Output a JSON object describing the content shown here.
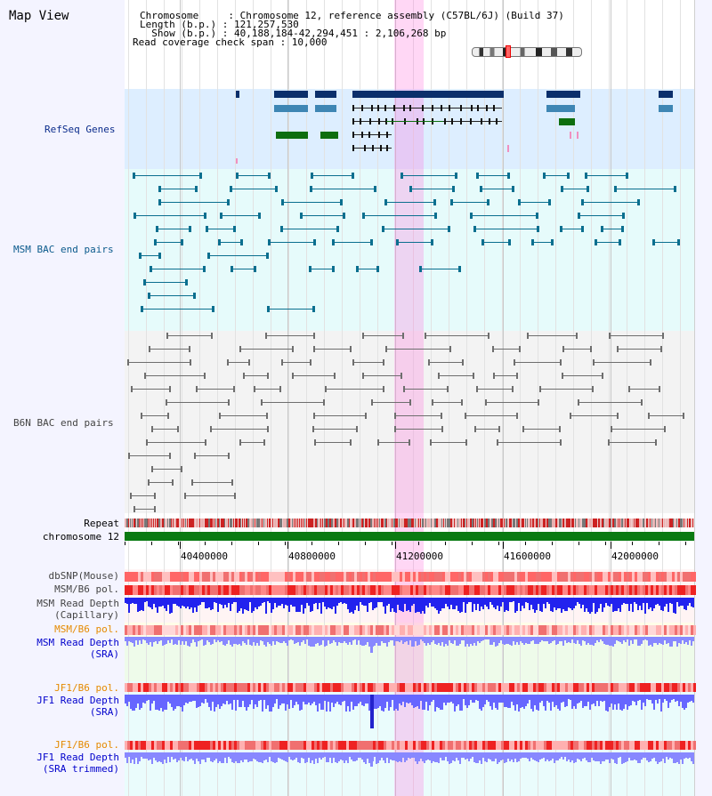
{
  "app": {
    "title": "Map View"
  },
  "header": {
    "chromosome_row": "Chromosome     : Chromosome 12, reference assembly (C57BL/6J) (Build 37)",
    "length_row": "Length (b.p.) : 121,257,530",
    "show_row": "  Show (b.p.) : 40,188,184-42,294,451 : 2,106,268 bp",
    "coverage_row": "Read coverage check span : 10,000"
  },
  "tracks": {
    "refseq": "RefSeq Genes",
    "msm_bac": "MSM BAC end pairs",
    "b6n_bac": "B6N BAC end pairs",
    "repeat": "Repeat",
    "chromosome": "chromosome 12",
    "dbsnp": "dbSNP(Mouse)",
    "msm_b6_pol": "MSM/B6 pol.",
    "msm_depth_cap_1": "MSM Read Depth",
    "msm_depth_cap_2": "(Capillary)",
    "msm_b6_pol_2": "MSM/B6 pol.",
    "msm_depth_sra_1": "MSM Read Depth",
    "msm_depth_sra_2": "(SRA)",
    "jf1_b6_pol": "JF1/B6 pol.",
    "jf1_depth_sra_1": "JF1 Read Depth",
    "jf1_depth_sra_2": "(SRA)",
    "jf1_b6_pol_2": "JF1/B6 pol.",
    "jf1_depth_trim_1": "JF1 Read Depth",
    "jf1_depth_trim_2": "(SRA trimmed)"
  },
  "axis": {
    "ticks": [
      "40400000",
      "40800000",
      "41200000",
      "41600000",
      "42000000"
    ]
  },
  "colors": {
    "refseq_bg": "#ddeeff",
    "msm_bac_bg": "#e6fbfb",
    "b6n_bac_bg": "#f2f2f2",
    "gene_navy": "#0b2f6b",
    "gene_steel": "#3e86b4",
    "gene_green": "#0e6e0e",
    "bac_teal": "#0a6f8f",
    "bac_gray": "#6e6e6e",
    "chromosome_bar": "#0a7a12",
    "depth_blue": "#2222ee",
    "depth_light": "#8888ff",
    "highlight": "#ffb4ec",
    "orange_label": "#e58a00",
    "blue_label": "#0000cc",
    "teal_label": "#0b5a8c"
  }
}
